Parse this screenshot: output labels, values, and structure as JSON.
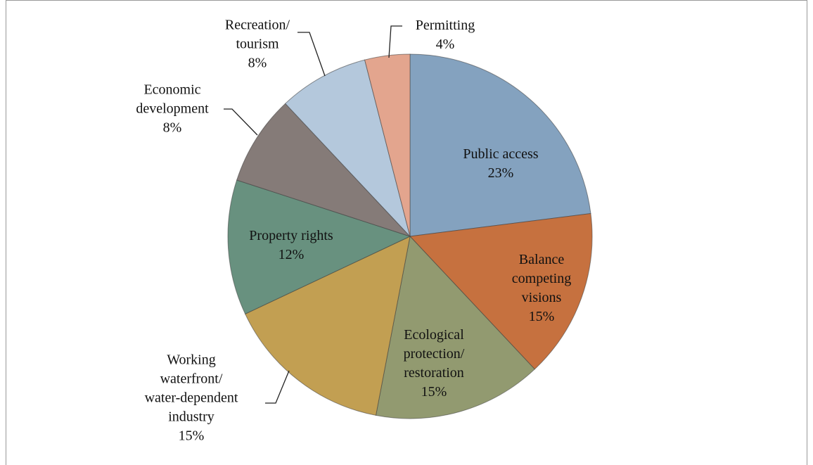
{
  "chart_data": {
    "type": "pie",
    "categories": [
      "Public access",
      "Balance\ncompeting\nvisions",
      "Ecological\nprotection/\nrestoration",
      "Working\nwaterfront/\nwater-dependent\nindustry",
      "Property rights",
      "Economic\ndevelopment",
      "Recreation/\ntourism",
      "Permitting"
    ],
    "values": [
      23,
      15,
      15,
      15,
      12,
      8,
      8,
      4
    ],
    "value_labels": [
      "23%",
      "15%",
      "15%",
      "15%",
      "12%",
      "8%",
      "8%",
      "4%"
    ],
    "colors": [
      "#84a2bf",
      "#c6713f",
      "#929a70",
      "#c29f52",
      "#68917f",
      "#857b78",
      "#b4c8dc",
      "#e3a58e"
    ]
  }
}
